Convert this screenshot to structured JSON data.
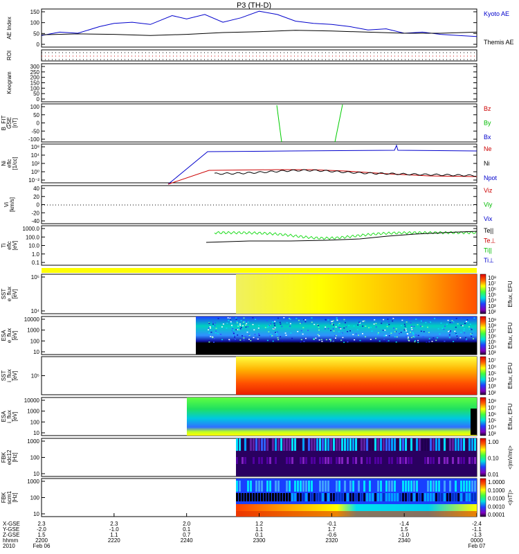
{
  "title": "P3 (TH-D)",
  "panels": [
    {
      "id": "ae",
      "ylabel": [
        "AE Index"
      ],
      "yticks": [
        "150",
        "100",
        "50",
        "0"
      ],
      "legend": [
        {
          "text": "Kyoto AE",
          "color": "#0000cc"
        },
        {
          "text": "Themis AE",
          "color": "#000000"
        }
      ]
    },
    {
      "id": "roi",
      "ylabel": [
        "ROI"
      ],
      "yticks": [],
      "legend": []
    },
    {
      "id": "keogram",
      "ylabel": [
        "Keogram"
      ],
      "yticks": [
        "300",
        "250",
        "200",
        "150",
        "100",
        "50",
        "0"
      ],
      "legend": []
    },
    {
      "id": "bfit",
      "ylabel": [
        "B_FIT",
        "GSE",
        "[nT]"
      ],
      "yticks": [
        "100",
        "50",
        "0",
        "-50",
        "-100"
      ],
      "legend": [
        {
          "text": "Bz",
          "color": "#cc0000"
        },
        {
          "text": "By",
          "color": "#00bb00"
        },
        {
          "text": "Bx",
          "color": "#0000cc"
        }
      ]
    },
    {
      "id": "ni",
      "ylabel": [
        "Ni",
        "eflc",
        "[1/cc]"
      ],
      "yticks": [
        "10⁸",
        "10⁴",
        "10²",
        "10⁰",
        "10⁻²"
      ],
      "legend": [
        {
          "text": "Ne",
          "color": "#cc0000"
        },
        {
          "text": "Ni",
          "color": "#000000"
        },
        {
          "text": "Npot",
          "color": "#0000cc"
        }
      ]
    },
    {
      "id": "vi",
      "ylabel": [
        "Vi",
        "[km/s]"
      ],
      "yticks": [
        "40",
        "20",
        "0",
        "-20",
        "-40"
      ],
      "legend": [
        {
          "text": "Viz",
          "color": "#cc0000"
        },
        {
          "text": "Viy",
          "color": "#00bb00"
        },
        {
          "text": "Vix",
          "color": "#0000cc"
        }
      ]
    },
    {
      "id": "ti",
      "ylabel": [
        "Ti",
        "eflc",
        "[eV]"
      ],
      "yticks": [
        "1000.0",
        "100.0",
        "10.0",
        "1.0",
        "0.1"
      ],
      "legend": [
        {
          "text": "Te||",
          "color": "#000000"
        },
        {
          "text": "Te⊥",
          "color": "#cc0000"
        },
        {
          "text": "Ti||",
          "color": "#00bb00"
        },
        {
          "text": "Ti⊥",
          "color": "#0000cc"
        }
      ]
    },
    {
      "id": "sst_e",
      "ylabel": [
        "SST",
        "e_flux",
        "[eV]"
      ],
      "yticks": [
        "10⁵",
        "10⁴"
      ],
      "legend": [],
      "cbar": {
        "ticks": [
          "10⁸",
          "10⁷",
          "10⁶",
          "10⁵",
          "10⁴",
          "10³",
          "10²"
        ],
        "label": "Eflux, EFU"
      }
    },
    {
      "id": "esa_e",
      "ylabel": [
        "ESA",
        "e_flux",
        "[eV]"
      ],
      "yticks": [
        "10000",
        "1000",
        "100",
        "10"
      ],
      "legend": [],
      "cbar": {
        "ticks": [
          "10⁹",
          "10⁸",
          "10⁷",
          "10⁶",
          "10⁵",
          "10⁴",
          "10³"
        ],
        "label": "Eflux, EFU"
      }
    },
    {
      "id": "sst_i",
      "ylabel": [
        "SST",
        "i_flux",
        "[eV]"
      ],
      "yticks": [
        "10⁵"
      ],
      "legend": [],
      "cbar": {
        "ticks": [
          "10⁷",
          "10⁶",
          "10⁵",
          "10⁴",
          "10³",
          "10²"
        ],
        "label": "Eflux, EFU"
      }
    },
    {
      "id": "esa_i",
      "ylabel": [
        "ESA",
        "i_flux",
        "[eV]"
      ],
      "yticks": [
        "10000",
        "1000",
        "100",
        "10"
      ],
      "legend": [],
      "cbar": {
        "ticks": [
          "10⁸",
          "10⁷",
          "10⁶",
          "10⁵",
          "10⁴",
          "10³"
        ],
        "label": "Eflux, EFU"
      }
    },
    {
      "id": "fbk1",
      "ylabel": [
        "FBK",
        "edc12",
        "[Hz]"
      ],
      "yticks": [
        "1000",
        "100",
        "10"
      ],
      "legend": [],
      "cbar": {
        "ticks": [
          "1.00",
          "0.10",
          "0.01"
        ],
        "label": "<|mV/m|>"
      }
    },
    {
      "id": "fbk2",
      "ylabel": [
        "FBK",
        "scm1",
        "[Hz]"
      ],
      "yticks": [
        "1000",
        "100",
        "10"
      ],
      "legend": [],
      "cbar": {
        "ticks": [
          "1.0000",
          "0.1000",
          "0.0100",
          "0.0010",
          "0.0001"
        ],
        "label": "<|nT|>"
      }
    }
  ],
  "xaxis": {
    "rowlabels": [
      "X-GSE",
      "Y-GSE",
      "Z-GSE",
      "hhmm",
      "2010"
    ],
    "ticks": [
      {
        "x": "2200",
        "rows": [
          "2.3",
          "-2.0",
          "1.5",
          "2200",
          "Feb 06"
        ]
      },
      {
        "x": "2220",
        "rows": [
          "2.3",
          "-1.0",
          "1.1",
          "2220",
          ""
        ]
      },
      {
        "x": "2240",
        "rows": [
          "2.0",
          "0.1",
          "0.7",
          "2240",
          ""
        ]
      },
      {
        "x": "2300",
        "rows": [
          "1.2",
          "1.1",
          "0.1",
          "2300",
          ""
        ]
      },
      {
        "x": "2320",
        "rows": [
          "-0.1",
          "1.7",
          "-0.6",
          "2320",
          ""
        ]
      },
      {
        "x": "2340",
        "rows": [
          "-1.4",
          "1.5",
          "-1.0",
          "2340",
          ""
        ]
      },
      {
        "x": "0000",
        "rows": [
          "-2.4",
          "-1.1",
          "-1.3",
          "0000",
          "Feb 07"
        ]
      }
    ]
  },
  "chart_data": {
    "type": "line",
    "title": "P3 (TH-D)",
    "x_range": [
      "2010-02-06 22:00",
      "2010-02-07 00:00"
    ],
    "series": [
      {
        "name": "Kyoto AE",
        "color": "#0000cc",
        "x": [
          "22:00",
          "22:05",
          "22:10",
          "22:16",
          "22:20",
          "22:25",
          "22:30",
          "22:36",
          "22:40",
          "22:45",
          "22:50",
          "22:55",
          "23:00",
          "23:05",
          "23:10",
          "23:15",
          "23:20",
          "23:25",
          "23:30",
          "23:35",
          "23:40",
          "23:45",
          "23:50",
          "23:55",
          "00:00"
        ],
        "y": [
          45,
          60,
          55,
          85,
          100,
          105,
          95,
          135,
          120,
          140,
          105,
          125,
          155,
          140,
          110,
          100,
          95,
          85,
          70,
          75,
          55,
          60,
          50,
          45,
          40
        ]
      },
      {
        "name": "Themis AE",
        "color": "#000000",
        "x": [
          "22:00",
          "22:10",
          "22:20",
          "22:30",
          "22:40",
          "22:50",
          "23:00",
          "23:10",
          "23:20",
          "23:30",
          "23:40",
          "23:50",
          "00:00"
        ],
        "y": [
          48,
          52,
          50,
          45,
          50,
          58,
          62,
          68,
          65,
          60,
          55,
          55,
          60
        ]
      }
    ]
  }
}
